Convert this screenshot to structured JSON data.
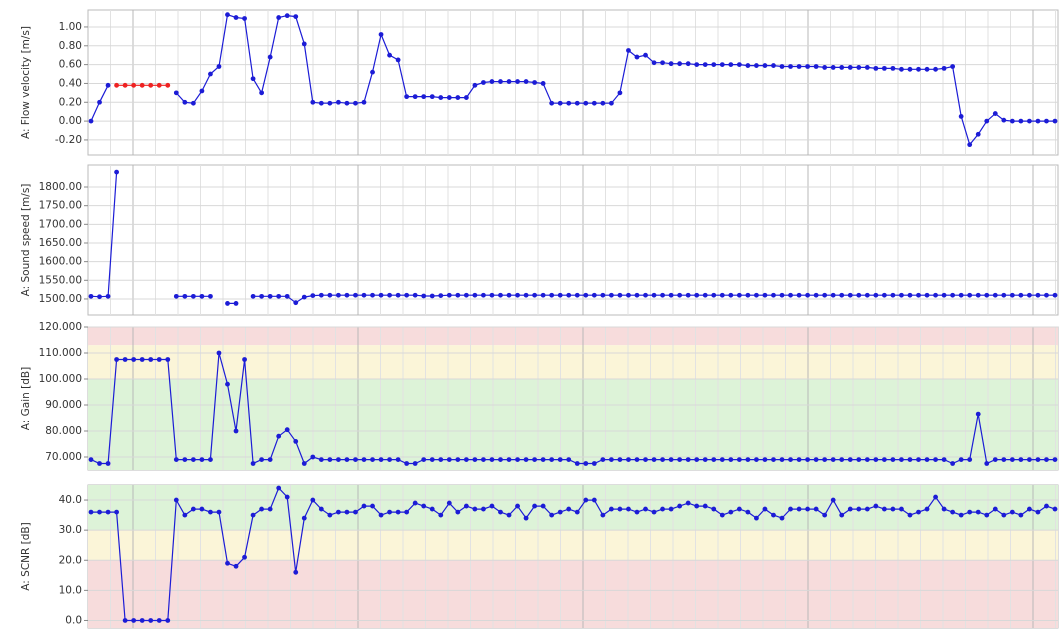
{
  "chart_data": [
    {
      "type": "line",
      "ylabel": "A: Flow velocity [m/s]",
      "ylim": [
        -0.36,
        1.18
      ],
      "yticks": [
        {
          "value": -0.2,
          "label": "-0.20"
        },
        {
          "value": 0,
          "label": "0.00"
        },
        {
          "value": 0.2,
          "label": "0.20"
        },
        {
          "value": 0.4,
          "label": "0.40"
        },
        {
          "value": 0.6,
          "label": "0.60"
        },
        {
          "value": 0.8,
          "label": "0.80"
        },
        {
          "value": 1,
          "label": "1.00"
        }
      ],
      "grid": true,
      "series": [
        {
          "color": "#1c1cd6",
          "values": [
            0.0,
            0.2,
            0.38,
            null,
            null,
            null,
            null,
            null,
            null,
            null,
            0.3,
            0.2,
            0.19,
            0.32,
            0.5,
            0.58,
            1.13,
            1.1,
            1.09,
            0.45,
            0.3,
            0.68,
            1.1,
            1.12,
            1.11,
            0.82,
            0.2,
            0.19,
            0.19,
            0.2,
            0.19,
            0.19,
            0.2,
            0.52,
            0.92,
            0.7,
            0.65,
            0.26,
            0.26,
            0.26,
            0.26,
            0.25,
            0.25,
            0.25,
            0.25,
            0.38,
            0.41,
            0.42,
            0.42,
            0.42,
            0.42,
            0.42,
            0.41,
            0.4,
            0.19,
            0.19,
            0.19,
            0.19,
            0.19,
            0.19,
            0.19,
            0.19,
            0.3,
            0.75,
            0.68,
            0.7,
            0.62,
            0.62,
            0.61,
            0.61,
            0.61,
            0.6,
            0.6,
            0.6,
            0.6,
            0.6,
            0.6,
            0.59,
            0.59,
            0.59,
            0.59,
            0.58,
            0.58,
            0.58,
            0.58,
            0.58,
            0.57,
            0.57,
            0.57,
            0.57,
            0.57,
            0.57,
            0.56,
            0.56,
            0.56,
            0.55,
            0.55,
            0.55,
            0.55,
            0.55,
            0.56,
            0.58,
            0.05,
            -0.25,
            -0.14,
            0.0,
            0.08,
            0.01,
            0.0,
            0.0,
            0.0,
            0.0,
            0.0,
            0.0
          ]
        },
        {
          "color": "#ee2222",
          "values": [
            null,
            null,
            null,
            0.38,
            0.38,
            0.38,
            0.38,
            0.38,
            0.38,
            0.38,
            null,
            null,
            null,
            null,
            null,
            null,
            null,
            null,
            null,
            null,
            null,
            null,
            null,
            null,
            null,
            null,
            null,
            null,
            null,
            null,
            null,
            null,
            null,
            null,
            null,
            null,
            null,
            null,
            null,
            null,
            null,
            null,
            null,
            null,
            null,
            null,
            null,
            null,
            null,
            null,
            null,
            null,
            null,
            null,
            null,
            null,
            null,
            null,
            null,
            null,
            null,
            null,
            null,
            null,
            null,
            null,
            null,
            null,
            null,
            null,
            null,
            null,
            null,
            null,
            null,
            null,
            null,
            null,
            null,
            null,
            null,
            null,
            null,
            null,
            null,
            null,
            null,
            null,
            null,
            null,
            null,
            null,
            null,
            null,
            null,
            null,
            null,
            null,
            null,
            null,
            null,
            null,
            null,
            null,
            null,
            null,
            null,
            null,
            null,
            null,
            null,
            null,
            null,
            null
          ]
        }
      ]
    },
    {
      "type": "line",
      "ylabel": "A: Sound speed [m/s]",
      "ylim": [
        1457,
        1859
      ],
      "yticks": [
        {
          "value": 1500,
          "label": "1500.00"
        },
        {
          "value": 1550,
          "label": "1550.00"
        },
        {
          "value": 1600,
          "label": "1600.00"
        },
        {
          "value": 1650,
          "label": "1650.00"
        },
        {
          "value": 1700,
          "label": "1700.00"
        },
        {
          "value": 1750,
          "label": "1750.00"
        },
        {
          "value": 1800,
          "label": "1800.00"
        }
      ],
      "grid": true,
      "series": [
        {
          "color": "#1c1cd6",
          "values": [
            1507,
            1506,
            1507,
            1840,
            null,
            null,
            null,
            null,
            null,
            null,
            1507,
            1507,
            1507,
            1507,
            1507,
            null,
            1488,
            1488,
            null,
            1507,
            1507,
            1507,
            1507,
            1507,
            1490,
            1505,
            1509,
            1510,
            1510,
            1510,
            1510,
            1510,
            1510,
            1510,
            1510,
            1510,
            1510,
            1510,
            1510,
            1508,
            1508,
            1509,
            1510,
            1510,
            1510,
            1510,
            1510,
            1510,
            1510,
            1510,
            1510,
            1510,
            1510,
            1510,
            1510,
            1510,
            1510,
            1510,
            1510,
            1510,
            1510,
            1510,
            1510,
            1510,
            1510,
            1510,
            1510,
            1510,
            1510,
            1510,
            1510,
            1510,
            1510,
            1510,
            1510,
            1510,
            1510,
            1510,
            1510,
            1510,
            1510,
            1510,
            1510,
            1510,
            1510,
            1510,
            1510,
            1510,
            1510,
            1510,
            1510,
            1510,
            1510,
            1510,
            1510,
            1510,
            1510,
            1510,
            1510,
            1510,
            1510,
            1510,
            1510,
            1510,
            1510,
            1510,
            1510,
            1510,
            1510,
            1510,
            1510,
            1510,
            1510,
            1510
          ]
        }
      ]
    },
    {
      "type": "line",
      "ylabel": "A: Gain [dB]",
      "ylim": [
        65,
        120
      ],
      "yticks": [
        {
          "value": 70,
          "label": "70.000"
        },
        {
          "value": 80,
          "label": "80.000"
        },
        {
          "value": 90,
          "label": "90.000"
        },
        {
          "value": 100,
          "label": "100.000"
        },
        {
          "value": 110,
          "label": "110.000"
        },
        {
          "value": 120,
          "label": "120.000"
        }
      ],
      "grid": true,
      "bands": [
        {
          "from": 113,
          "to": 120,
          "color": "#f7dcdc"
        },
        {
          "from": 100,
          "to": 113,
          "color": "#fbf5d8"
        },
        {
          "from": 65,
          "to": 100,
          "color": "#ddf3d8"
        }
      ],
      "series": [
        {
          "color": "#1c1cd6",
          "values": [
            69,
            67.5,
            67.5,
            107.5,
            107.5,
            107.5,
            107.5,
            107.5,
            107.5,
            107.5,
            69,
            69,
            69,
            69,
            69,
            110,
            98,
            80,
            107.5,
            67.5,
            69,
            69,
            78,
            80.5,
            76,
            67.5,
            70,
            69,
            69,
            69,
            69,
            69,
            69,
            69,
            69,
            69,
            69,
            67.5,
            67.5,
            69,
            69,
            69,
            69,
            69,
            69,
            69,
            69,
            69,
            69,
            69,
            69,
            69,
            69,
            69,
            69,
            69,
            69,
            67.5,
            67.5,
            67.5,
            69,
            69,
            69,
            69,
            69,
            69,
            69,
            69,
            69,
            69,
            69,
            69,
            69,
            69,
            69,
            69,
            69,
            69,
            69,
            69,
            69,
            69,
            69,
            69,
            69,
            69,
            69,
            69,
            69,
            69,
            69,
            69,
            69,
            69,
            69,
            69,
            69,
            69,
            69,
            69,
            69,
            67.5,
            69,
            69,
            86.5,
            67.5,
            69,
            69,
            69,
            69,
            69,
            69,
            69,
            69
          ]
        }
      ]
    },
    {
      "type": "line",
      "ylabel": "A: SCNR [dB]",
      "ylim": [
        -2.5,
        45
      ],
      "yticks": [
        {
          "value": 0,
          "label": "0.0"
        },
        {
          "value": 10,
          "label": "10.0"
        },
        {
          "value": 20,
          "label": "20.0"
        },
        {
          "value": 30,
          "label": "30.0"
        },
        {
          "value": 40,
          "label": "40.0"
        }
      ],
      "grid": true,
      "bands": [
        {
          "from": 30,
          "to": 45,
          "color": "#ddf3d8"
        },
        {
          "from": 20,
          "to": 30,
          "color": "#fbf5d8"
        },
        {
          "from": -2.5,
          "to": 20,
          "color": "#f7dcdc"
        }
      ],
      "series": [
        {
          "color": "#1c1cd6",
          "values": [
            36,
            36,
            36,
            36,
            0,
            0,
            0,
            0,
            0,
            0,
            40,
            35,
            37,
            37,
            36,
            36,
            19,
            18,
            21,
            35,
            37,
            37,
            44,
            41,
            16,
            34,
            40,
            37,
            35,
            36,
            36,
            36,
            38,
            38,
            35,
            36,
            36,
            36,
            39,
            38,
            37,
            35,
            39,
            36,
            38,
            37,
            37,
            38,
            36,
            35,
            38,
            34,
            38,
            38,
            35,
            36,
            37,
            36,
            40,
            40,
            35,
            37,
            37,
            37,
            36,
            37,
            36,
            37,
            37,
            38,
            39,
            38,
            38,
            37,
            35,
            36,
            37,
            36,
            34,
            37,
            35,
            34,
            37,
            37,
            37,
            37,
            35,
            40,
            35,
            37,
            37,
            37,
            38,
            37,
            37,
            37,
            35,
            36,
            37,
            41,
            37,
            36,
            35,
            36,
            36,
            35,
            37,
            35,
            36,
            35,
            37,
            36,
            38,
            37
          ]
        }
      ]
    }
  ]
}
